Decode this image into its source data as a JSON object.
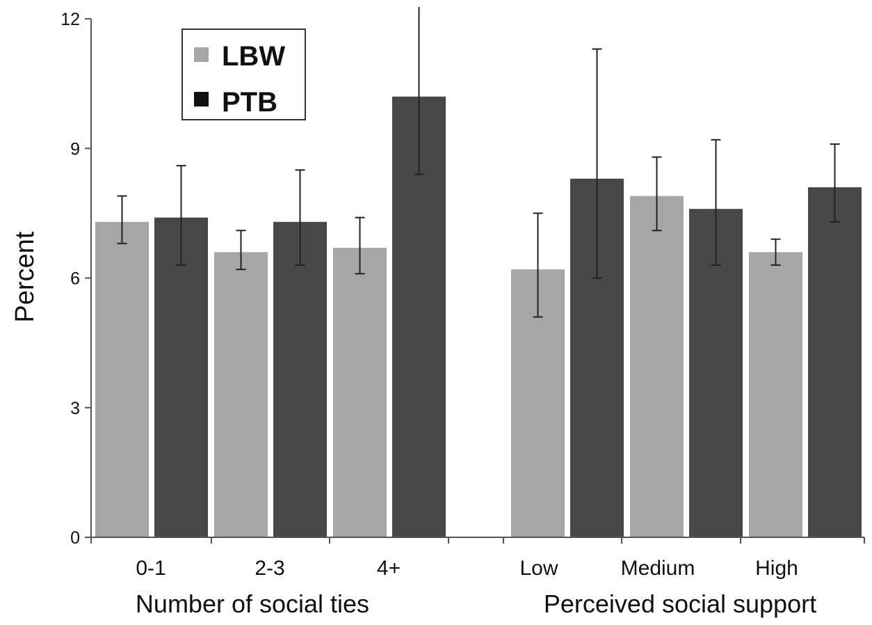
{
  "chart_data": {
    "type": "bar",
    "title": "",
    "xlabel": "",
    "ylabel": "Percent",
    "ylim": [
      0,
      12
    ],
    "yticks": [
      0,
      3,
      6,
      9,
      12
    ],
    "grid": false,
    "legend": {
      "placement": "top-left",
      "entries": [
        "LBW",
        "PTB"
      ]
    },
    "colors": {
      "LBW": "#a6a6a6",
      "PTB": "#474747",
      "axis": "#555555",
      "errorbar": "#222222"
    },
    "groups": [
      {
        "label": "Number of social ties",
        "categories": [
          "0-1",
          "2-3",
          "4+"
        ],
        "series": [
          {
            "name": "LBW",
            "values": [
              7.3,
              6.6,
              6.7
            ],
            "lower": [
              6.8,
              6.2,
              6.1
            ],
            "upper": [
              7.9,
              7.1,
              7.4
            ]
          },
          {
            "name": "PTB",
            "values": [
              7.4,
              7.3,
              10.2
            ],
            "lower": [
              6.3,
              6.3,
              8.4
            ],
            "upper": [
              8.6,
              8.5,
              12.4
            ]
          }
        ]
      },
      {
        "label": "Perceived social support",
        "categories": [
          "Low",
          "Medium",
          "High"
        ],
        "series": [
          {
            "name": "LBW",
            "values": [
              6.2,
              7.9,
              6.6
            ],
            "lower": [
              5.1,
              7.1,
              6.3
            ],
            "upper": [
              7.5,
              8.8,
              6.9
            ]
          },
          {
            "name": "PTB",
            "values": [
              8.3,
              7.6,
              8.1
            ],
            "lower": [
              6.0,
              6.3,
              7.3
            ],
            "upper": [
              11.3,
              9.2,
              9.1
            ]
          }
        ]
      }
    ]
  }
}
